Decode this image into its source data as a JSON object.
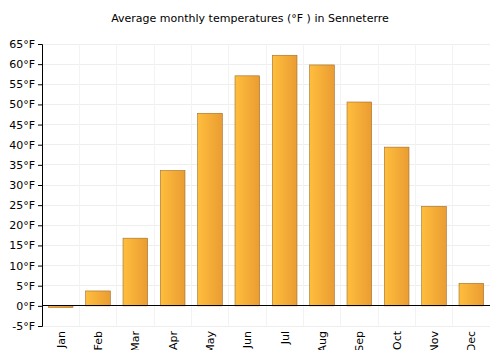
{
  "chart_data": {
    "type": "bar",
    "title": "Average monthly temperatures (°F ) in Senneterre",
    "categories": [
      "Jan",
      "Feb",
      "Mar",
      "Apr",
      "May",
      "Jun",
      "Jul",
      "Aug",
      "Sep",
      "Oct",
      "Nov",
      "Dec"
    ],
    "values": [
      -0.4,
      3.7,
      16.8,
      33.6,
      47.8,
      57.1,
      62.2,
      59.8,
      50.6,
      39.4,
      24.7,
      5.6
    ],
    "color": "#f7a535",
    "ylim": [
      -5,
      65
    ],
    "yticks": [
      {
        "value": -5,
        "label": "-5°F"
      },
      {
        "value": 0,
        "label": "0°F"
      },
      {
        "value": 5,
        "label": "5°F"
      },
      {
        "value": 10,
        "label": "10°F"
      },
      {
        "value": 15,
        "label": "15°F"
      },
      {
        "value": 20,
        "label": "20°F"
      },
      {
        "value": 25,
        "label": "25°F"
      },
      {
        "value": 30,
        "label": "30°F"
      },
      {
        "value": 35,
        "label": "35°F"
      },
      {
        "value": 40,
        "label": "40°F"
      },
      {
        "value": 45,
        "label": "45°F"
      },
      {
        "value": 50,
        "label": "50°F"
      },
      {
        "value": 55,
        "label": "55°F"
      },
      {
        "value": 60,
        "label": "60°F"
      },
      {
        "value": 65,
        "label": "65°F"
      }
    ],
    "grid": true
  }
}
